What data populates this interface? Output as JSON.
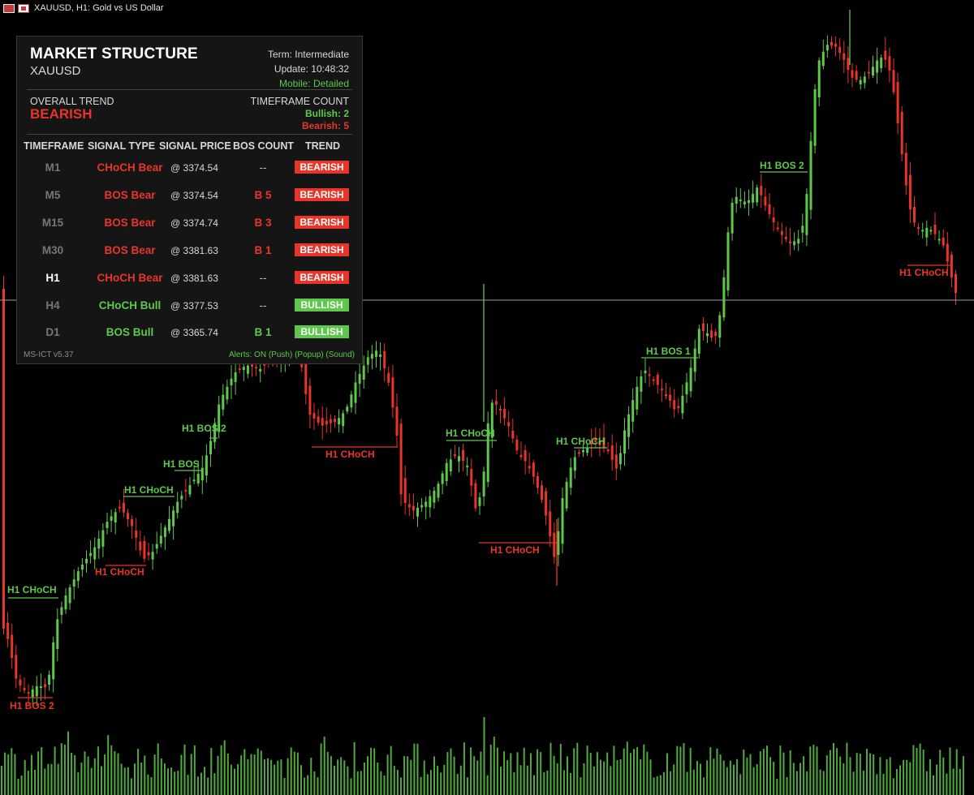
{
  "window": {
    "title": "XAUUSD, H1:  Gold vs US Dollar"
  },
  "colors": {
    "bull": "#5ec84a",
    "bear": "#e8352a",
    "background": "#000000",
    "panel": "#151515",
    "price_line": "#8fa3ad"
  },
  "panel": {
    "title": "MARKET STRUCTURE",
    "symbol": "XAUUSD",
    "term": "Term: Intermediate",
    "update": "Update: 10:48:32",
    "mobile": "Mobile: Detailed",
    "overall_label": "OVERALL TREND",
    "overall_value": "BEARISH",
    "tf_count_label": "TIMEFRAME COUNT",
    "bullish_count": "Bullish: 2",
    "bearish_count": "Bearish: 5",
    "headers": [
      "TIMEFRAME",
      "SIGNAL TYPE",
      "SIGNAL PRICE",
      "BOS COUNT",
      "TREND"
    ],
    "rows": [
      {
        "tf": "M1",
        "signal": "CHoCH Bear",
        "price": "@ 3374.54",
        "bos": "--",
        "trend": "BEARISH",
        "dir": "bear",
        "active": false
      },
      {
        "tf": "M5",
        "signal": "BOS Bear",
        "price": "@ 3374.54",
        "bos": "B 5",
        "trend": "BEARISH",
        "dir": "bear",
        "active": false
      },
      {
        "tf": "M15",
        "signal": "BOS Bear",
        "price": "@ 3374.74",
        "bos": "B 3",
        "trend": "BEARISH",
        "dir": "bear",
        "active": false
      },
      {
        "tf": "M30",
        "signal": "BOS Bear",
        "price": "@ 3381.63",
        "bos": "B 1",
        "trend": "BEARISH",
        "dir": "bear",
        "active": false
      },
      {
        "tf": "H1",
        "signal": "CHoCH Bear",
        "price": "@ 3381.63",
        "bos": "--",
        "trend": "BEARISH",
        "dir": "bear",
        "active": true
      },
      {
        "tf": "H4",
        "signal": "CHoCH Bull",
        "price": "@ 3377.53",
        "bos": "--",
        "trend": "BULLISH",
        "dir": "bull",
        "active": false
      },
      {
        "tf": "D1",
        "signal": "BOS Bull",
        "price": "@ 3365.74",
        "bos": "B 1",
        "trend": "BULLISH",
        "dir": "bull",
        "active": false
      }
    ],
    "version": "MS-ICT v5.37",
    "alerts": "Alerts: ON (Push) (Popup) (Sound)"
  },
  "chart_annotations": [
    {
      "label": "H1 CHoCH",
      "dir": "bull"
    },
    {
      "label": "H1 BOS 2",
      "dir": "bear"
    },
    {
      "label": "H1 CHoCH",
      "dir": "bear"
    },
    {
      "label": "H1 CHoCH",
      "dir": "bull"
    },
    {
      "label": "H1 BOS",
      "dir": "bull"
    },
    {
      "label": "H1 BOS 2",
      "dir": "bull"
    },
    {
      "label": "H1 CHoCH",
      "dir": "bear"
    },
    {
      "label": "H1 CHoCH",
      "dir": "bull"
    },
    {
      "label": "H1 CHoCH",
      "dir": "bear"
    },
    {
      "label": "H1 CHoCH",
      "dir": "bull"
    },
    {
      "label": "H1 BOS 1",
      "dir": "bull"
    },
    {
      "label": "H1 BOS 2",
      "dir": "bull"
    },
    {
      "label": "H1 CHoCH",
      "dir": "bear"
    }
  ]
}
